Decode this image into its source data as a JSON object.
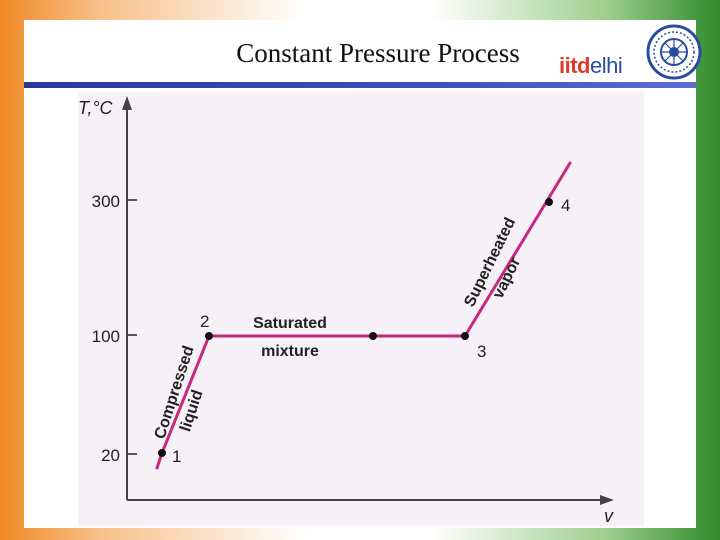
{
  "slide": {
    "title": "Constant Pressure Process",
    "logo": {
      "part_a": "iitd",
      "part_b": "elhi"
    }
  },
  "colors": {
    "process_line": "#c8287e",
    "accent_bar": "#2a3a9a",
    "logo_red": "#e23a2a",
    "logo_blue": "#2a4ca0"
  },
  "diagram": {
    "axes": {
      "y_label": "T,°C",
      "x_label": "v"
    },
    "y_ticks": [
      "300",
      "100",
      "20"
    ],
    "states": [
      {
        "id": "1",
        "label": "1"
      },
      {
        "id": "2",
        "label": "2"
      },
      {
        "id": "3",
        "label": "3"
      },
      {
        "id": "4",
        "label": "4"
      }
    ],
    "regions": {
      "compressed": [
        "Compressed",
        "liquid"
      ],
      "saturated": [
        "Saturated",
        "mixture"
      ],
      "superheated": [
        "Superheated",
        "vapor"
      ]
    }
  }
}
